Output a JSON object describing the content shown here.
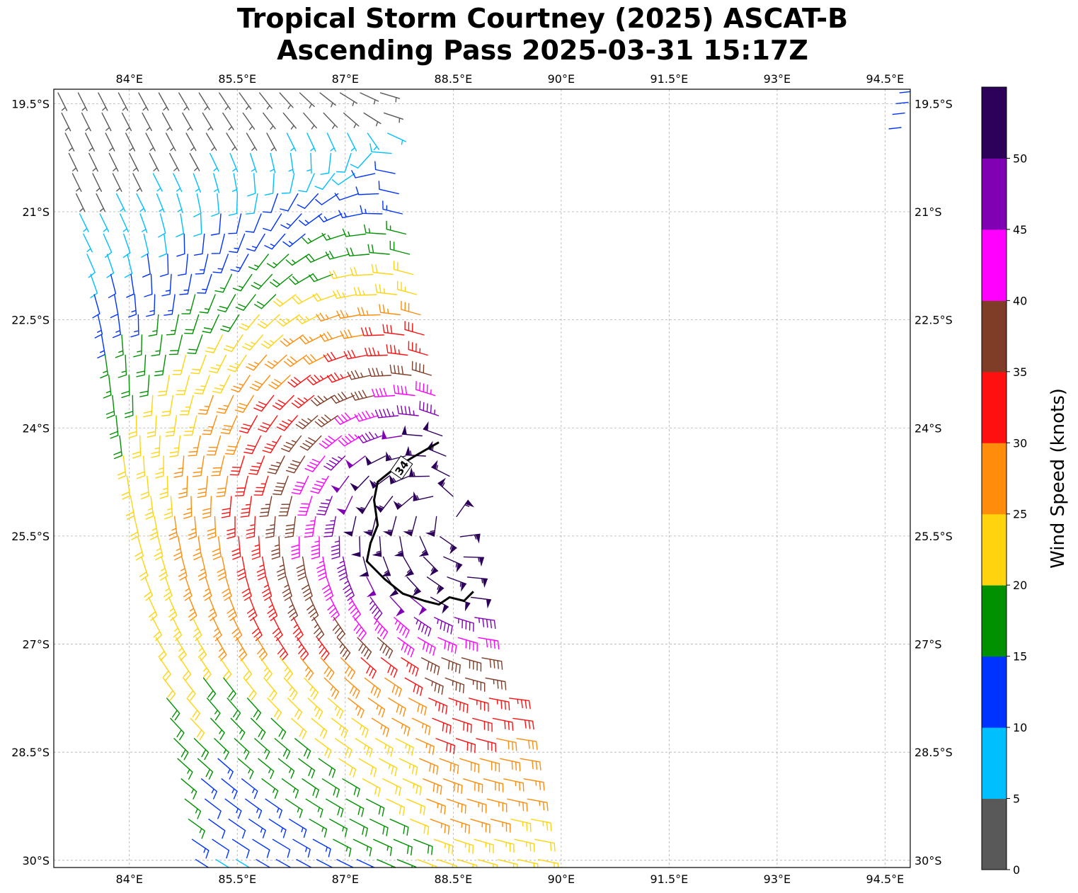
{
  "title": {
    "line1": "Tropical Storm Courtney (2025) ASCAT-B",
    "line2": "Ascending Pass 2025-03-31 15:17Z"
  },
  "map": {
    "lon_ticks": [
      "84°E",
      "85.5°E",
      "87°E",
      "88.5°E",
      "90°E",
      "91.5°E",
      "93°E",
      "94.5°E"
    ],
    "lat_ticks": [
      "19.5°S",
      "21°S",
      "22.5°S",
      "24°S",
      "25.5°S",
      "27°S",
      "28.5°S",
      "30°S"
    ],
    "contour_label": "34",
    "grid": true
  },
  "colorbar": {
    "label": "Wind Speed (knots)",
    "ticks": [
      "0",
      "5",
      "10",
      "15",
      "20",
      "25",
      "30",
      "35",
      "40",
      "45",
      "50"
    ],
    "colors": [
      "#595959",
      "#00bfff",
      "#0033ff",
      "#009100",
      "#ffd40f",
      "#ff8c0a",
      "#ff1010",
      "#7f3c26",
      "#ff00ff",
      "#8000b4",
      "#2d0059"
    ]
  },
  "chart_data": {
    "type": "wind_barbs",
    "units": "knots",
    "lon_range": [
      82.95,
      94.85
    ],
    "lat_range": [
      -30.1,
      -19.3
    ],
    "contour_kt": 34,
    "center_approx": {
      "lon": 88.4,
      "lat": -25.2
    },
    "max_wind_approx_kt": 52,
    "speed_bins": [
      0,
      5,
      10,
      15,
      20,
      25,
      30,
      35,
      40,
      45,
      50
    ]
  }
}
